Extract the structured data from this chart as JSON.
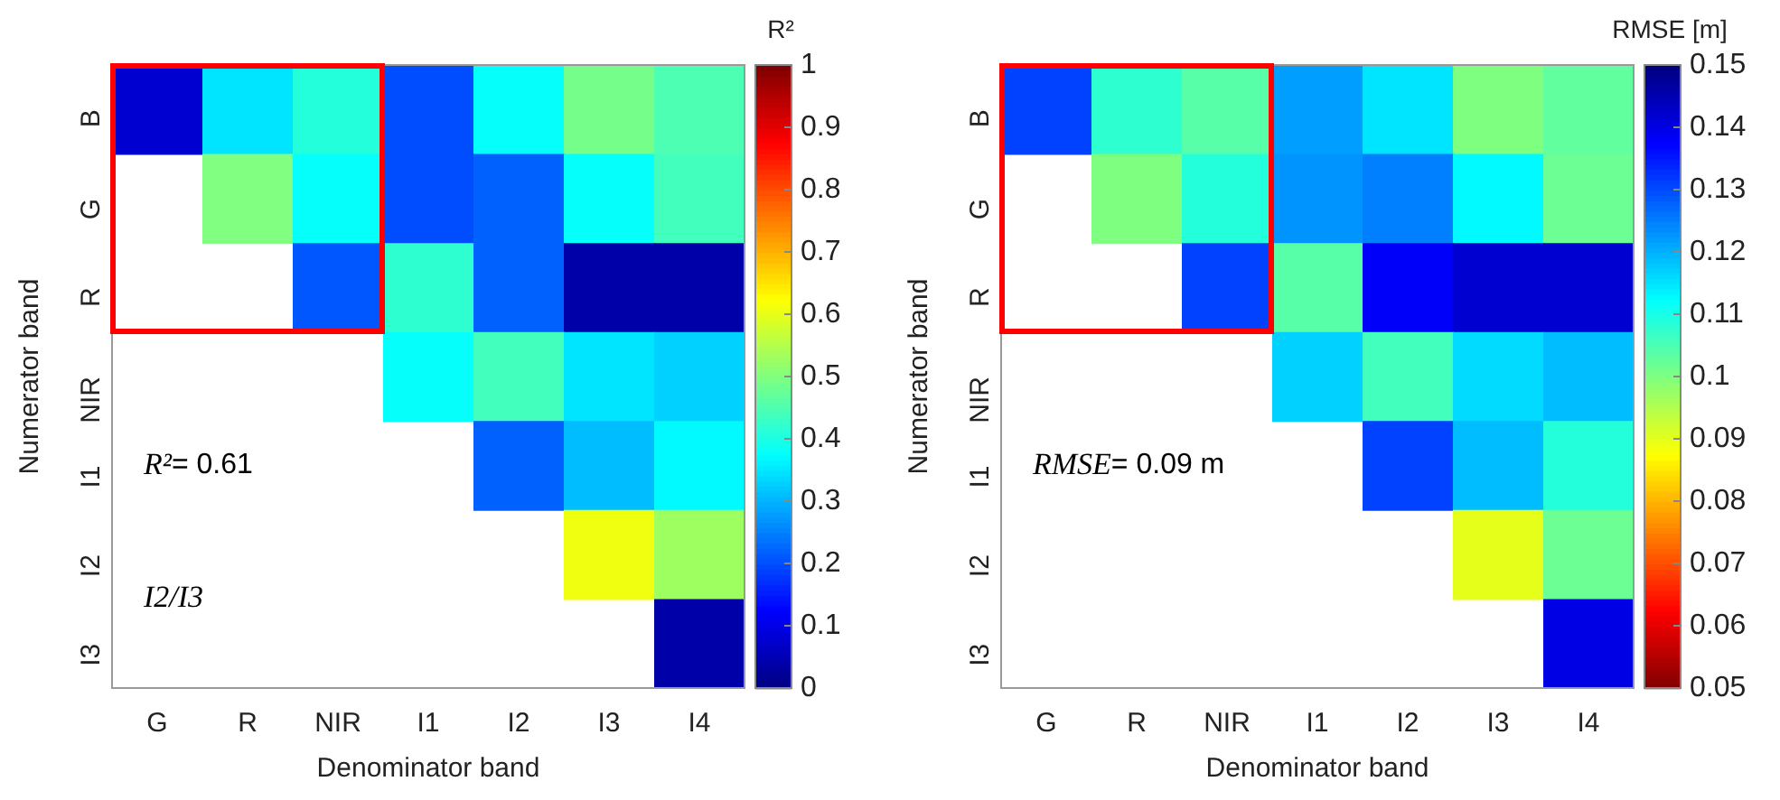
{
  "chart_data": [
    {
      "type": "heatmap",
      "xlabel": "Denominator band",
      "ylabel": "Numerator band",
      "clabel": "R²",
      "categories": [
        "G",
        "R",
        "NIR",
        "I1",
        "I2",
        "I3",
        "I4"
      ],
      "y_categories": [
        "B",
        "G",
        "R",
        "NIR",
        "I1",
        "I2",
        "I3"
      ],
      "cells": [
        [
          0.08,
          0.35,
          0.41,
          0.2,
          0.38,
          0.49,
          0.45
        ],
        [
          null,
          0.5,
          0.38,
          0.2,
          0.22,
          0.38,
          0.44
        ],
        [
          null,
          null,
          0.21,
          0.42,
          0.22,
          0.04,
          0.04
        ],
        [
          null,
          null,
          null,
          0.38,
          0.44,
          0.35,
          0.33
        ],
        [
          null,
          null,
          null,
          null,
          0.22,
          0.31,
          0.37
        ],
        [
          null,
          null,
          null,
          null,
          null,
          0.61,
          0.53
        ],
        [
          null,
          null,
          null,
          null,
          null,
          null,
          0.04
        ]
      ],
      "clim": [
        0,
        1
      ],
      "cticks": [
        0,
        0.1,
        0.2,
        0.3,
        0.4,
        0.5,
        0.6,
        0.7,
        0.8,
        0.9,
        1
      ],
      "annotations": [
        "R²= 0.61",
        "I2/I3"
      ]
    },
    {
      "type": "heatmap",
      "xlabel": "Denominator band",
      "ylabel": "Numerator band",
      "clabel": "RMSE [m]",
      "categories": [
        "G",
        "R",
        "NIR",
        "I1",
        "I2",
        "I3",
        "I4"
      ],
      "y_categories": [
        "B",
        "G",
        "R",
        "NIR",
        "I1",
        "I2",
        "I3"
      ],
      "cells": [
        [
          0.131,
          0.108,
          0.104,
          0.122,
          0.115,
          0.1,
          0.103
        ],
        [
          null,
          0.1,
          0.109,
          0.123,
          0.125,
          0.113,
          0.102
        ],
        [
          null,
          null,
          0.131,
          0.104,
          0.138,
          0.142,
          0.142
        ],
        [
          null,
          null,
          null,
          0.117,
          0.106,
          0.116,
          0.119
        ],
        [
          null,
          null,
          null,
          null,
          0.131,
          0.119,
          0.109
        ],
        [
          null,
          null,
          null,
          null,
          null,
          0.09,
          0.102
        ],
        [
          null,
          null,
          null,
          null,
          null,
          null,
          0.14
        ]
      ],
      "clim": [
        0.15,
        0.05
      ],
      "cticks": [
        0.05,
        0.06,
        0.07,
        0.08,
        0.09,
        0.1,
        0.11,
        0.12,
        0.13,
        0.14,
        0.15
      ],
      "annotations": [
        "RMSE= 0.09 m"
      ]
    }
  ]
}
